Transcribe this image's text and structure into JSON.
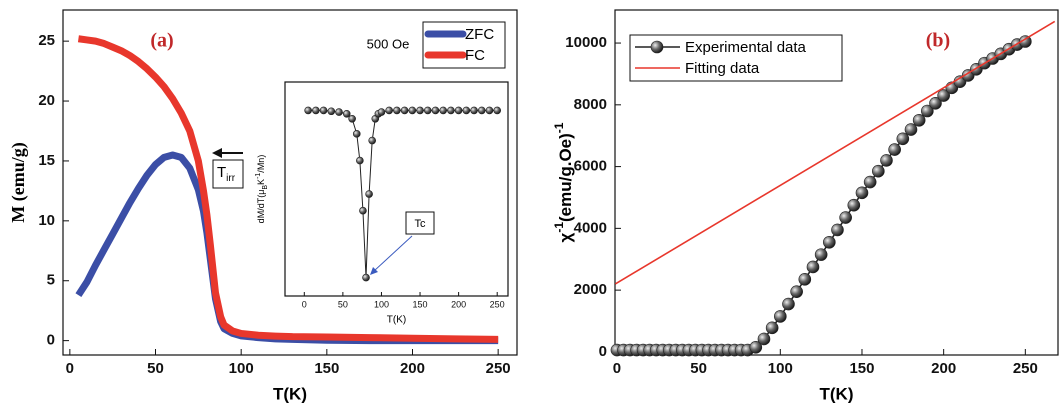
{
  "chart_data": [
    {
      "type": "line",
      "panel_label": "(a)",
      "field_label": "500 Oe",
      "x_label": "T(K)",
      "y_label": "M (emu/g)",
      "irr_label": {
        "text": "T",
        "sub": "irr"
      },
      "xlim": [
        -4,
        261
      ],
      "ylim": [
        -1.2,
        27.6
      ],
      "xticks": [
        0,
        50,
        100,
        150,
        200,
        250
      ],
      "yticks": [
        0,
        5,
        10,
        15,
        20,
        25
      ],
      "legend": "upper right",
      "series": [
        {
          "name": "ZFC",
          "color": "#3b4ea6",
          "x": [
            5,
            10,
            15,
            20,
            25,
            30,
            35,
            40,
            45,
            50,
            55,
            60,
            65,
            70,
            75,
            78,
            80,
            82,
            85,
            88,
            90,
            95,
            100,
            110,
            120,
            130,
            150,
            175,
            200,
            225,
            250
          ],
          "values": [
            3.8,
            4.9,
            6.3,
            7.6,
            8.9,
            10.2,
            11.5,
            12.7,
            13.8,
            14.7,
            15.3,
            15.5,
            15.3,
            14.4,
            12.6,
            10.8,
            9,
            6.8,
            3.5,
            1.6,
            1.0,
            0.6,
            0.4,
            0.25,
            0.15,
            0.1,
            0.03,
            0,
            0,
            0,
            0
          ]
        },
        {
          "name": "FC",
          "color": "#e8372c",
          "x": [
            5,
            10,
            15,
            20,
            25,
            30,
            35,
            40,
            45,
            50,
            55,
            60,
            65,
            70,
            75,
            78,
            80,
            82,
            85,
            88,
            90,
            95,
            100,
            110,
            120,
            130,
            150,
            175,
            200,
            225,
            250
          ],
          "values": [
            25.2,
            25.1,
            25.0,
            24.8,
            24.5,
            24.2,
            23.8,
            23.3,
            22.7,
            22.0,
            21.2,
            20.2,
            19.0,
            17.5,
            15.0,
            12.5,
            10.5,
            8,
            4,
            2,
            1.3,
            0.8,
            0.6,
            0.45,
            0.38,
            0.33,
            0.3,
            0.25,
            0.2,
            0.15,
            0.1
          ]
        }
      ]
    },
    {
      "type": "line",
      "x_label": "T(K)",
      "y_label_parts": [
        {
          "text": "dM/dT(μ"
        },
        {
          "text": "B",
          "shift": "sub"
        },
        {
          "text": "K"
        },
        {
          "text": "-1",
          "shift": "super"
        },
        {
          "text": "/Mn)"
        }
      ],
      "tc_label": "Tc",
      "xlim": [
        -25,
        264
      ],
      "ylim": [
        -0.11,
        1.17
      ],
      "xticks": [
        0,
        50,
        100,
        150,
        200,
        250
      ],
      "series": [
        {
          "color": "#222222",
          "marker": true,
          "x": [
            5,
            15,
            25,
            35,
            45,
            55,
            62,
            68,
            72,
            76,
            80,
            84,
            88,
            92,
            96,
            100,
            110,
            120,
            130,
            140,
            150,
            160,
            170,
            180,
            190,
            200,
            210,
            220,
            230,
            240,
            250
          ],
          "values": [
            1,
            1,
            1,
            0.995,
            0.99,
            0.98,
            0.95,
            0.86,
            0.7,
            0.4,
            0,
            0.5,
            0.82,
            0.95,
            0.98,
            0.99,
            1,
            1,
            1,
            1,
            1,
            1,
            1,
            1,
            1,
            1,
            1,
            1,
            1,
            1,
            1
          ]
        }
      ]
    },
    {
      "type": "line",
      "panel_label": "(b)",
      "x_label": "T(K)",
      "y_label_parts": [
        {
          "text": "χ"
        },
        {
          "text": "-1",
          "shift": "super"
        },
        {
          "text": "(emu/g.Oe)"
        },
        {
          "text": "-1",
          "shift": "super"
        }
      ],
      "xlim": [
        -1.2,
        270
      ],
      "ylim": [
        -100,
        11070
      ],
      "xticks": [
        0,
        50,
        100,
        150,
        200,
        250
      ],
      "yticks": [
        0,
        2000,
        4000,
        6000,
        8000,
        10000
      ],
      "legend": "upper left",
      "series": [
        {
          "name": "Experimental data",
          "color": "#222222",
          "marker": true,
          "x": [
            0,
            4,
            8,
            12,
            16,
            20,
            24,
            28,
            32,
            36,
            40,
            44,
            48,
            52,
            56,
            60,
            64,
            68,
            72,
            76,
            80,
            85,
            90,
            95,
            100,
            105,
            110,
            115,
            120,
            125,
            130,
            135,
            140,
            145,
            150,
            155,
            160,
            165,
            170,
            175,
            180,
            185,
            190,
            195,
            200,
            205,
            210,
            215,
            220,
            225,
            230,
            235,
            240,
            245,
            250
          ],
          "values": [
            60,
            60,
            60,
            60,
            60,
            60,
            60,
            60,
            60,
            60,
            60,
            60,
            60,
            60,
            60,
            60,
            60,
            60,
            60,
            60,
            60,
            150,
            420,
            780,
            1150,
            1550,
            1950,
            2350,
            2750,
            3150,
            3550,
            3950,
            4350,
            4750,
            5150,
            5500,
            5850,
            6200,
            6550,
            6900,
            7200,
            7500,
            7800,
            8050,
            8300,
            8550,
            8750,
            8950,
            9150,
            9350,
            9500,
            9650,
            9800,
            9950,
            10050
          ]
        },
        {
          "name": "Fitting data",
          "color": "#e8372c",
          "x": [
            -1,
            268
          ],
          "values": [
            2200,
            10700
          ]
        }
      ]
    }
  ]
}
